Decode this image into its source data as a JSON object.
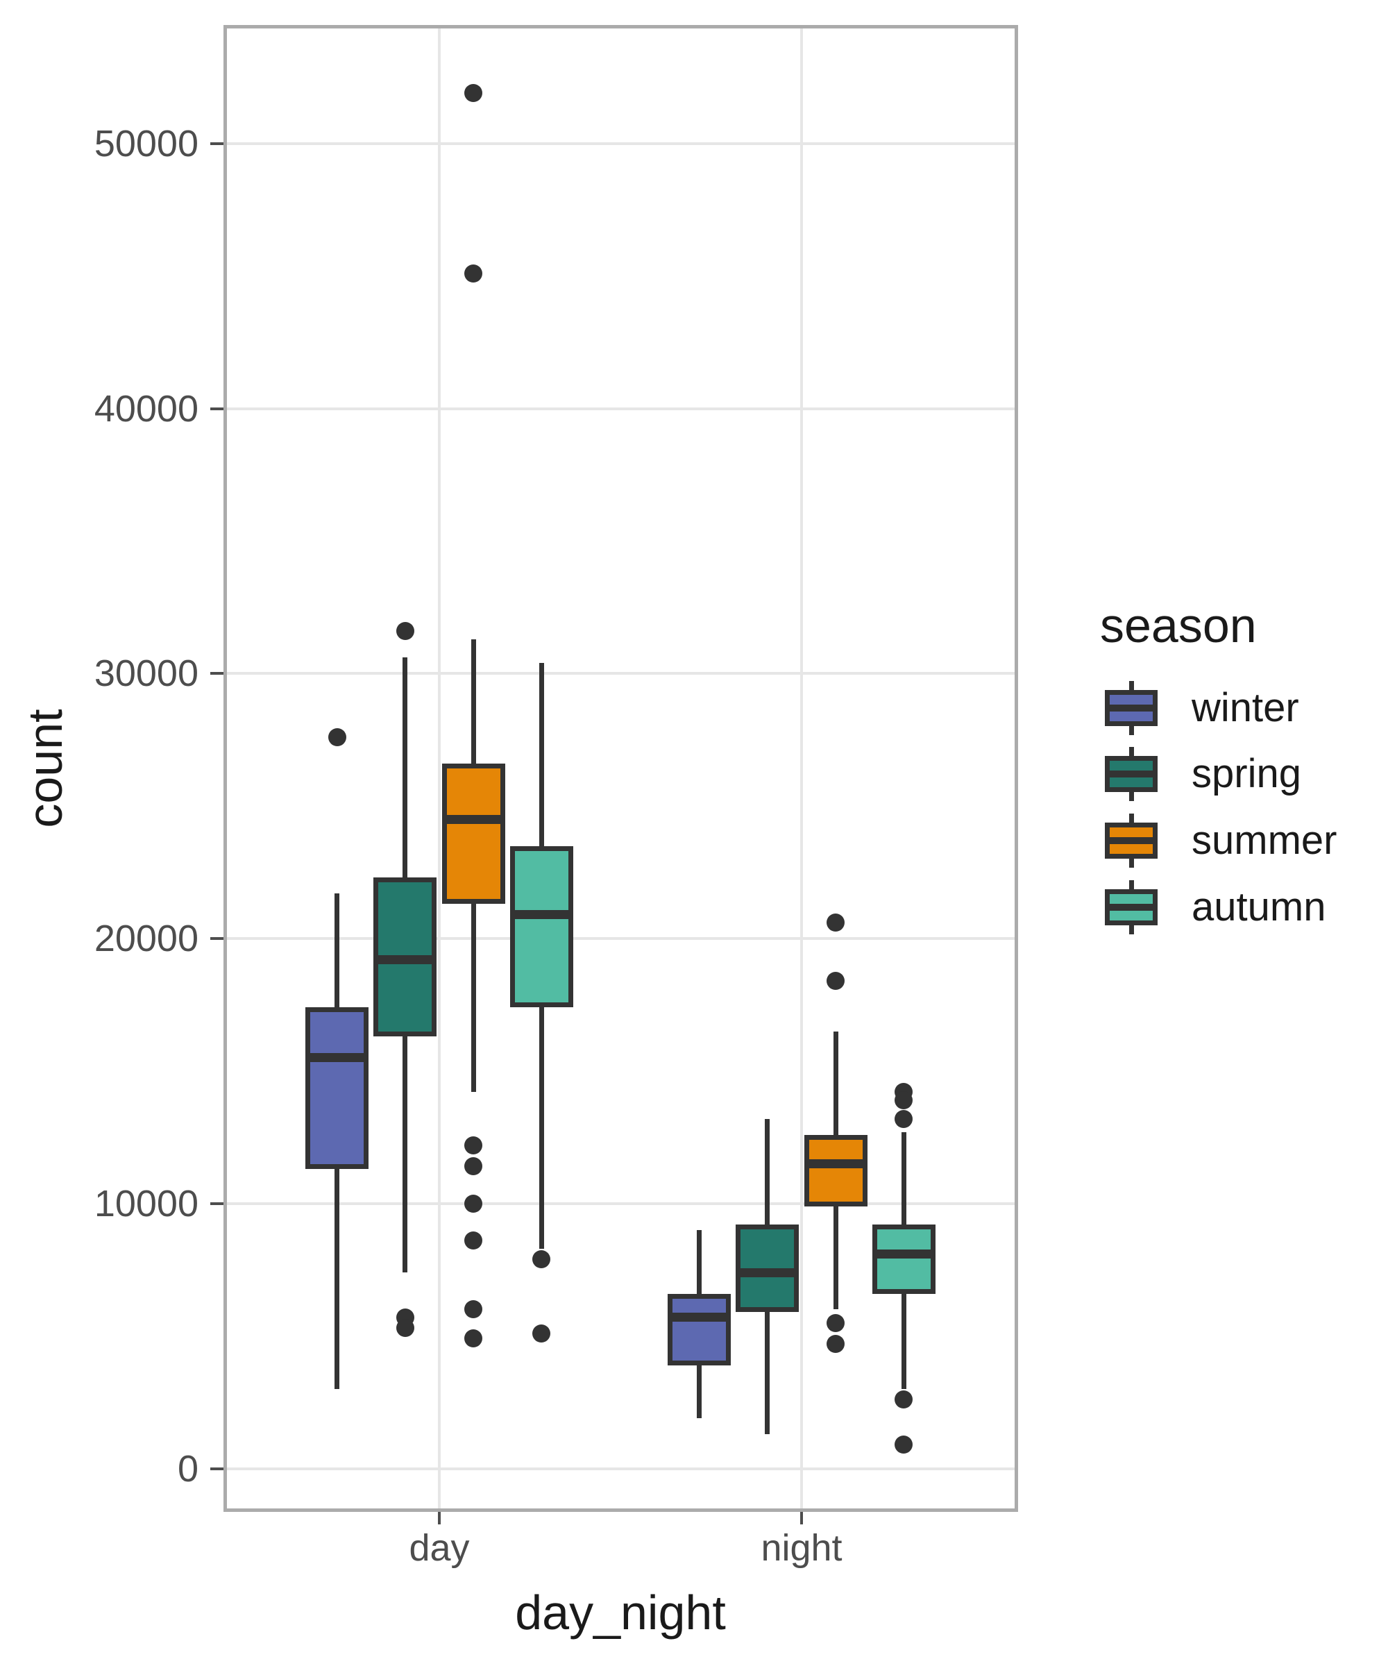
{
  "axes": {
    "y_title": "count",
    "x_title": "day_night",
    "x_categories": [
      "day",
      "night"
    ],
    "y_ticks": [
      0,
      10000,
      20000,
      30000,
      40000,
      50000
    ]
  },
  "legend": {
    "title": "season",
    "items": [
      {
        "label": "winter",
        "color": "#5D69B1"
      },
      {
        "label": "spring",
        "color": "#24796C"
      },
      {
        "label": "summer",
        "color": "#E58606"
      },
      {
        "label": "autumn",
        "color": "#52BCA3"
      }
    ]
  },
  "colors": {
    "stroke": "#333333",
    "grid": "#E6E6E6",
    "panel_border": "#ABABAB",
    "tick_text": "#4D4D4D",
    "title_text": "#1A1A1A"
  },
  "chart_data": {
    "type": "boxplot",
    "xlabel": "day_night",
    "ylabel": "count",
    "ylim": [
      0,
      54000
    ],
    "y_tick_interval": 10000,
    "grid": true,
    "legend_position": "right",
    "groups": [
      "day",
      "night"
    ],
    "series": [
      {
        "name": "winter",
        "color": "#5D69B1",
        "boxes": [
          {
            "group": "day",
            "whisker_low": 3000,
            "q1": 11300,
            "median": 15500,
            "q3": 17400,
            "whisker_high": 21700,
            "outliers": [
              27600
            ]
          },
          {
            "group": "night",
            "whisker_low": 1900,
            "q1": 3900,
            "median": 5700,
            "q3": 6600,
            "whisker_high": 9000,
            "outliers": []
          }
        ]
      },
      {
        "name": "spring",
        "color": "#24796C",
        "boxes": [
          {
            "group": "day",
            "whisker_low": 7400,
            "q1": 16300,
            "median": 19200,
            "q3": 22300,
            "whisker_high": 30600,
            "outliers": [
              31600,
              5700,
              5300
            ]
          },
          {
            "group": "night",
            "whisker_low": 1300,
            "q1": 5900,
            "median": 7400,
            "q3": 9200,
            "whisker_high": 13200,
            "outliers": []
          }
        ]
      },
      {
        "name": "summer",
        "color": "#E58606",
        "boxes": [
          {
            "group": "day",
            "whisker_low": 14200,
            "q1": 21300,
            "median": 24500,
            "q3": 26600,
            "whisker_high": 31300,
            "outliers": [
              51900,
              45100,
              12200,
              11400,
              10000,
              8600,
              6000,
              4900
            ]
          },
          {
            "group": "night",
            "whisker_low": 6000,
            "q1": 9900,
            "median": 11500,
            "q3": 12600,
            "whisker_high": 16500,
            "outliers": [
              20600,
              18400,
              5500,
              4700
            ]
          }
        ]
      },
      {
        "name": "autumn",
        "color": "#52BCA3",
        "boxes": [
          {
            "group": "day",
            "whisker_low": 8300,
            "q1": 17400,
            "median": 20900,
            "q3": 23500,
            "whisker_high": 30400,
            "outliers": [
              7900,
              5100
            ]
          },
          {
            "group": "night",
            "whisker_low": 3000,
            "q1": 6600,
            "median": 8100,
            "q3": 9200,
            "whisker_high": 12700,
            "outliers": [
              14200,
              13900,
              13200,
              2600,
              900
            ]
          }
        ]
      }
    ]
  }
}
